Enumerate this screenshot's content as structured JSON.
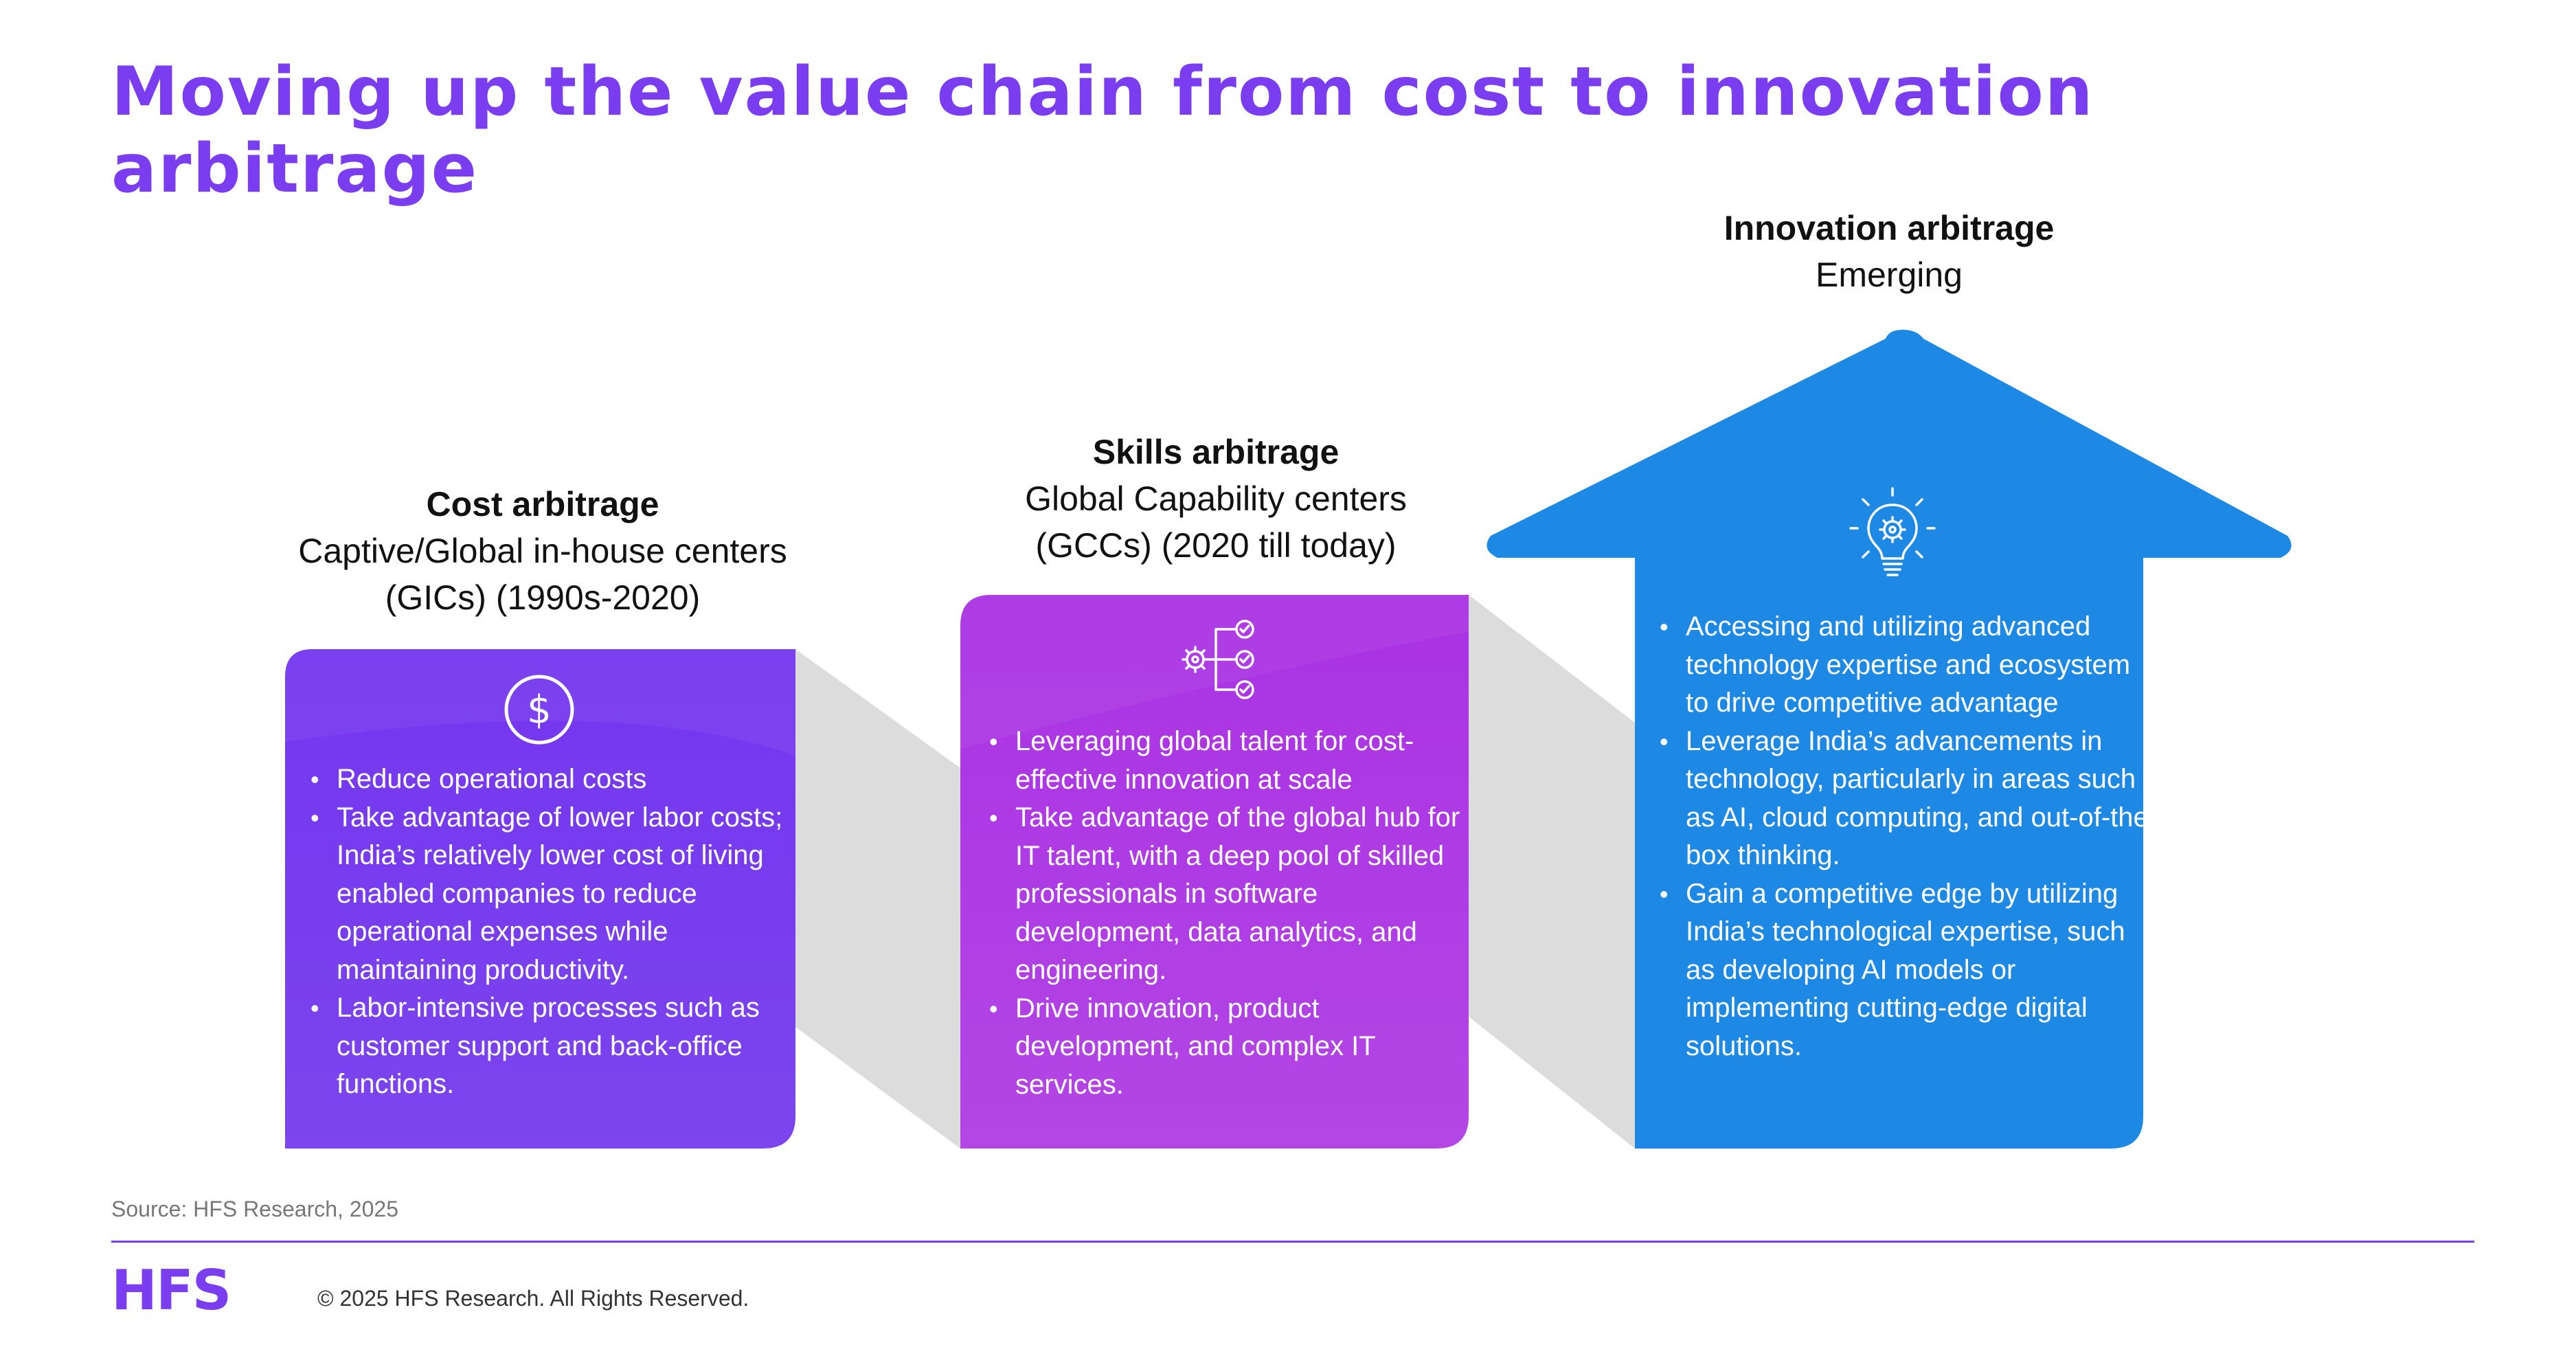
{
  "title": "Moving up the value chain from cost to innovation arbitrage",
  "stages": [
    {
      "title": "Cost arbitrage",
      "subtitle_lines": [
        "Captive/Global in-house centers",
        "(GICs) (1990s-2020)"
      ],
      "icon": "dollar-icon",
      "color": "#7b3df0",
      "bullets": [
        "Reduce operational costs",
        "Take advantage of lower labor costs; India’s relatively lower cost of living enabled companies to reduce operational expenses while maintaining productivity.",
        "Labor-intensive processes such as customer support and back-office functions."
      ]
    },
    {
      "title": "Skills arbitrage",
      "subtitle_lines": [
        "Global Capability centers",
        "(GCCs) (2020 till today)"
      ],
      "icon": "workflow-checklist-icon",
      "color": "#b23ae2",
      "bullets": [
        "Leveraging global talent for cost-effective innovation at scale",
        "Take advantage of the global hub for IT talent, with a deep pool of skilled professionals in software development, data analytics, and engineering.",
        "Drive innovation, product development, and complex IT services."
      ]
    },
    {
      "title": "Innovation arbitrage",
      "subtitle_lines": [
        "Emerging"
      ],
      "icon": "lightbulb-gear-icon",
      "color": "#1e88e5",
      "bullets": [
        "Accessing and utilizing advanced technology expertise and ecosystem to drive competitive advantage",
        "Leverage India’s advancements in technology, particularly in areas such as AI, cloud computing, and out-of-the-box thinking.",
        "Gain a competitive edge by utilizing India’s technological expertise, such as developing AI models or implementing cutting-edge digital solutions."
      ]
    }
  ],
  "source": "Source: HFS Research, 2025",
  "logo_text": "HFS",
  "copyright": "© 2025 HFS Research. All Rights Reserved."
}
